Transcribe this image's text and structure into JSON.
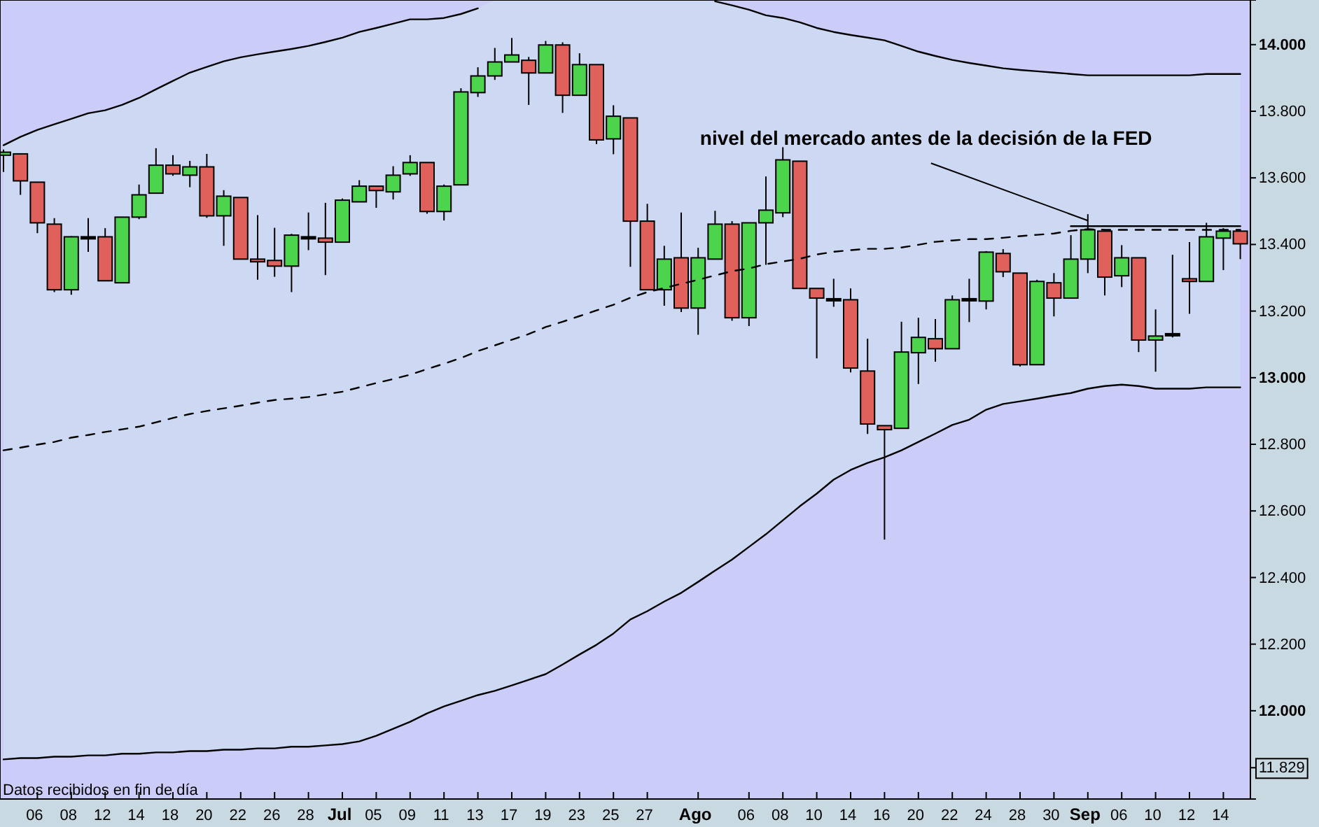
{
  "chart_data": {
    "type": "candlestick",
    "categories": [
      null,
      null,
      "06",
      null,
      "08",
      null,
      "12",
      null,
      "14",
      null,
      "18",
      null,
      "20",
      null,
      "22",
      null,
      "26",
      null,
      "28",
      null,
      "Jul",
      null,
      "05",
      null,
      "09",
      null,
      "11",
      null,
      "13",
      null,
      "17",
      null,
      "19",
      null,
      "23",
      null,
      "25",
      null,
      "27",
      null,
      null,
      "Ago",
      null,
      null,
      "06",
      null,
      "08",
      null,
      "10",
      null,
      "14",
      null,
      "16",
      null,
      "20",
      null,
      "22",
      null,
      "24",
      null,
      "28",
      null,
      "30",
      null,
      "Sep",
      null,
      "06",
      null,
      "10",
      null,
      "12",
      null,
      "14",
      null
    ],
    "ohlc": [
      [
        13668,
        13685,
        13618,
        13677
      ],
      [
        13672,
        13672,
        13549,
        13591
      ],
      [
        13587,
        13587,
        13434,
        13465
      ],
      [
        13461,
        13479,
        13257,
        13264
      ],
      [
        13264,
        13425,
        13249,
        13423
      ],
      [
        13420,
        13479,
        13378,
        13420
      ],
      [
        13423,
        13449,
        13291,
        13291
      ],
      [
        13285,
        13482,
        13285,
        13482
      ],
      [
        13482,
        13580,
        13476,
        13549
      ],
      [
        13554,
        13689,
        13554,
        13638
      ],
      [
        13638,
        13668,
        13606,
        13612
      ],
      [
        13608,
        13651,
        13572,
        13633
      ],
      [
        13633,
        13672,
        13480,
        13486
      ],
      [
        13486,
        13563,
        13396,
        13545
      ],
      [
        13541,
        13541,
        13356,
        13356
      ],
      [
        13356,
        13488,
        13294,
        13348
      ],
      [
        13352,
        13450,
        13303,
        13335
      ],
      [
        13335,
        13432,
        13257,
        13428
      ],
      [
        13420,
        13496,
        13383,
        13420
      ],
      [
        13419,
        13525,
        13308,
        13407
      ],
      [
        13407,
        13538,
        13407,
        13533
      ],
      [
        13528,
        13593,
        13528,
        13575
      ],
      [
        13575,
        13575,
        13510,
        13562
      ],
      [
        13558,
        13635,
        13535,
        13608
      ],
      [
        13612,
        13668,
        13606,
        13646
      ],
      [
        13646,
        13646,
        13492,
        13499
      ],
      [
        13499,
        13580,
        13472,
        13575
      ],
      [
        13579,
        13869,
        13579,
        13858
      ],
      [
        13856,
        13932,
        13843,
        13906
      ],
      [
        13906,
        13990,
        13894,
        13948
      ],
      [
        13948,
        14020,
        13948,
        13969
      ],
      [
        13953,
        13963,
        13819,
        13915
      ],
      [
        13915,
        14011,
        13915,
        13999
      ],
      [
        13999,
        14007,
        13795,
        13848
      ],
      [
        13848,
        13974,
        13848,
        13940
      ],
      [
        13940,
        13940,
        13701,
        13714
      ],
      [
        13717,
        13818,
        13671,
        13785
      ],
      [
        13780,
        13780,
        13333,
        13470
      ],
      [
        13470,
        13522,
        13264,
        13264
      ],
      [
        13264,
        13396,
        13216,
        13356
      ],
      [
        13360,
        13496,
        13197,
        13209
      ],
      [
        13209,
        13390,
        13129,
        13360
      ],
      [
        13356,
        13501,
        13356,
        13461
      ],
      [
        13461,
        13470,
        13171,
        13180
      ],
      [
        13180,
        13465,
        13155,
        13465
      ],
      [
        13465,
        13604,
        13339,
        13503
      ],
      [
        13495,
        13692,
        13482,
        13654
      ],
      [
        13650,
        13650,
        13268,
        13268
      ],
      [
        13268,
        13268,
        13058,
        13239
      ],
      [
        13234,
        13297,
        13213,
        13234
      ],
      [
        13234,
        13268,
        13016,
        13029
      ],
      [
        13020,
        13117,
        12831,
        12861
      ],
      [
        12856,
        12856,
        12514,
        12844
      ],
      [
        12848,
        13168,
        12848,
        13077
      ],
      [
        13075,
        13180,
        12981,
        13121
      ],
      [
        13117,
        13176,
        13048,
        13087
      ],
      [
        13087,
        13247,
        13087,
        13234
      ],
      [
        13234,
        13297,
        13167,
        13234
      ],
      [
        13230,
        13380,
        13205,
        13377
      ],
      [
        13373,
        13386,
        13302,
        13318
      ],
      [
        13314,
        13314,
        13034,
        13039
      ],
      [
        13039,
        13294,
        13039,
        13289
      ],
      [
        13285,
        13314,
        13184,
        13239
      ],
      [
        13239,
        13428,
        13239,
        13356
      ],
      [
        13356,
        13491,
        13314,
        13444
      ],
      [
        13440,
        13440,
        13247,
        13302
      ],
      [
        13306,
        13398,
        13272,
        13360
      ],
      [
        13360,
        13360,
        13077,
        13113
      ],
      [
        13113,
        13205,
        13018,
        13125
      ],
      [
        13129,
        13369,
        13121,
        13129
      ],
      [
        13297,
        13407,
        13192,
        13289
      ],
      [
        13289,
        13465,
        13289,
        13423
      ],
      [
        13419,
        13449,
        13323,
        13440
      ],
      [
        13440,
        13440,
        13356,
        13402
      ]
    ],
    "colors": [
      "#4cd44c",
      "#e0605c",
      "#e0605c",
      "#e0605c",
      "#4cd44c",
      "#000000",
      "#e0605c",
      "#4cd44c",
      "#4cd44c",
      "#4cd44c",
      "#e0605c",
      "#4cd44c",
      "#e0605c",
      "#4cd44c",
      "#e0605c",
      "#e0605c",
      "#e0605c",
      "#4cd44c",
      "#000000",
      "#e0605c",
      "#4cd44c",
      "#4cd44c",
      "#e0605c",
      "#4cd44c",
      "#4cd44c",
      "#e0605c",
      "#4cd44c",
      "#4cd44c",
      "#4cd44c",
      "#4cd44c",
      "#4cd44c",
      "#e0605c",
      "#4cd44c",
      "#e0605c",
      "#4cd44c",
      "#e0605c",
      "#4cd44c",
      "#e0605c",
      "#e0605c",
      "#4cd44c",
      "#e0605c",
      "#4cd44c",
      "#4cd44c",
      "#e0605c",
      "#4cd44c",
      "#4cd44c",
      "#4cd44c",
      "#e0605c",
      "#e0605c",
      "#000000",
      "#e0605c",
      "#e0605c",
      "#e0605c",
      "#4cd44c",
      "#4cd44c",
      "#e0605c",
      "#4cd44c",
      "#000000",
      "#4cd44c",
      "#e0605c",
      "#e0605c",
      "#4cd44c",
      "#e0605c",
      "#4cd44c",
      "#4cd44c",
      "#e0605c",
      "#4cd44c",
      "#e0605c",
      "#4cd44c",
      "#000000",
      "#e0605c",
      "#4cd44c",
      "#4cd44c",
      "#e0605c"
    ],
    "series": [
      {
        "type": "line",
        "color": "#000000",
        "line_style": "solid",
        "values": [
          13698,
          13723,
          13744,
          13761,
          13777,
          13794,
          13803,
          13819,
          13840,
          13866,
          13891,
          13916,
          13933,
          13950,
          13962,
          13971,
          13979,
          13987,
          13996,
          14008,
          14021,
          14038,
          14050,
          14063,
          14076,
          14076,
          14080,
          14092,
          14109,
          null,
          null,
          null,
          null,
          null,
          null,
          null,
          null,
          null,
          null,
          null,
          null,
          null,
          14130,
          14118,
          14105,
          14088,
          14080,
          14067,
          14050,
          14038,
          14029,
          14021,
          14013,
          13996,
          13979,
          13966,
          13954,
          13945,
          13937,
          13929,
          13924,
          13920,
          13916,
          13912,
          13908,
          13908,
          13908,
          13908,
          13908,
          13908,
          13908,
          13912,
          13912,
          13912
        ]
      },
      {
        "type": "line",
        "color": "#000000",
        "line_style": "solid",
        "values": [
          11854,
          11858,
          11858,
          11862,
          11862,
          11866,
          11866,
          11871,
          11871,
          11875,
          11875,
          11879,
          11879,
          11883,
          11883,
          11887,
          11887,
          11892,
          11892,
          11896,
          11900,
          11908,
          11925,
          11946,
          11967,
          11992,
          12013,
          12030,
          12047,
          12060,
          12076,
          12093,
          12110,
          12139,
          12169,
          12198,
          12232,
          12274,
          12299,
          12328,
          12354,
          12387,
          12421,
          12454,
          12492,
          12530,
          12572,
          12614,
          12652,
          12694,
          12723,
          12744,
          12761,
          12782,
          12807,
          12832,
          12858,
          12874,
          12904,
          12921,
          12929,
          12937,
          12946,
          12954,
          12967,
          12975,
          12979,
          12975,
          12967,
          12967,
          12967,
          12971,
          12971,
          12971
        ]
      },
      {
        "type": "line",
        "color": "#000000",
        "line_style": "dashed",
        "upper": [
          13698,
          13723,
          13744,
          13761,
          13777,
          13794,
          13803,
          13819,
          13840,
          13866,
          13891,
          13916,
          13933,
          13950,
          13962,
          13971,
          13979,
          13987,
          13996,
          14008,
          14021,
          14038,
          14050,
          14063,
          14076,
          14076,
          14080,
          14092,
          14109,
          14134,
          14134,
          14134,
          14134,
          14134,
          14134,
          14134,
          14134,
          14134,
          14134,
          14134,
          14134,
          14134,
          14130,
          14118,
          14105,
          14088,
          14080,
          14067,
          14050,
          14038,
          14029,
          14021,
          14013,
          13996,
          13979,
          13966,
          13954,
          13945,
          13937,
          13929,
          13924,
          13920,
          13916,
          13912,
          13908,
          13908,
          13908,
          13908,
          13908,
          13908,
          13908,
          13912,
          13912,
          13912
        ],
        "values": [
          12782,
          12790,
          12799,
          12807,
          12820,
          12828,
          12837,
          12845,
          12853,
          12866,
          12879,
          12891,
          12900,
          12908,
          12916,
          12925,
          12933,
          12937,
          12942,
          12950,
          12958,
          12971,
          12984,
          12996,
          13009,
          13026,
          13042,
          13059,
          13080,
          13097,
          13114,
          13131,
          13152,
          13168,
          13185,
          13202,
          13219,
          13240,
          13257,
          13269,
          13282,
          13294,
          13307,
          13320,
          13328,
          13341,
          13349,
          13357,
          13370,
          13378,
          13383,
          13387,
          13387,
          13391,
          13399,
          13408,
          13412,
          13416,
          13416,
          13420,
          13425,
          13429,
          13433,
          13441,
          13446,
          13444,
          13444,
          13444,
          13444,
          13444,
          13444,
          13444,
          13444,
          13444
        ],
        "lower": [
          11854,
          11858,
          11858,
          11862,
          11862,
          11866,
          11866,
          11871,
          11871,
          11875,
          11875,
          11879,
          11879,
          11883,
          11883,
          11887,
          11887,
          11892,
          11892,
          11896,
          11900,
          11908,
          11925,
          11946,
          11967,
          11992,
          12013,
          12030,
          12047,
          12060,
          12076,
          12093,
          12110,
          12139,
          12169,
          12198,
          12232,
          12274,
          12299,
          12328,
          12354,
          12387,
          12421,
          12454,
          12492,
          12530,
          12572,
          12614,
          12652,
          12694,
          12723,
          12744,
          12761,
          12782,
          12807,
          12832,
          12858,
          12874,
          12904,
          12921,
          12929,
          12937,
          12946,
          12954,
          12967,
          12975,
          12979,
          12975,
          12967,
          12967,
          12967,
          12971,
          12971,
          12971
        ]
      },
      {
        "type": "line",
        "color": "#000000",
        "line_style": "solid",
        "values": [
          null,
          null,
          null,
          null,
          null,
          null,
          null,
          null,
          null,
          null,
          null,
          null,
          null,
          null,
          null,
          null,
          null,
          null,
          null,
          null,
          null,
          null,
          null,
          null,
          null,
          null,
          null,
          null,
          null,
          null,
          null,
          null,
          null,
          null,
          null,
          null,
          null,
          null,
          null,
          null,
          null,
          null,
          null,
          null,
          null,
          null,
          null,
          null,
          null,
          null,
          null,
          null,
          null,
          null,
          null,
          null,
          null,
          null,
          null,
          null,
          null,
          null,
          null,
          13455,
          13455,
          13455,
          13455,
          13455,
          13455,
          13455,
          13455,
          13455,
          13455,
          13455
        ]
      }
    ],
    "ylim": [
      11735,
      14134
    ],
    "yticks": [
      {
        "value": 11829,
        "label": "11.829"
      },
      {
        "value": 12000,
        "label": "12.000"
      },
      {
        "value": 12200,
        "label": "12.200"
      },
      {
        "value": 12400,
        "label": "12.400"
      },
      {
        "value": 12600,
        "label": "12.600"
      },
      {
        "value": 12800,
        "label": "12.800"
      },
      {
        "value": 13000,
        "label": "13.000"
      },
      {
        "value": 13200,
        "label": "13.200"
      },
      {
        "value": 13400,
        "label": "13.400"
      },
      {
        "value": 13600,
        "label": "13.600"
      },
      {
        "value": 13800,
        "label": "13.800"
      },
      {
        "value": 14000,
        "label": "14.000"
      }
    ],
    "annotations": [
      {
        "text": "nivel del mercado antes de la decisión de la FED",
        "x": "Sep",
        "y": 13455
      },
      "Datos recibidos en fin de día"
    ]
  }
}
